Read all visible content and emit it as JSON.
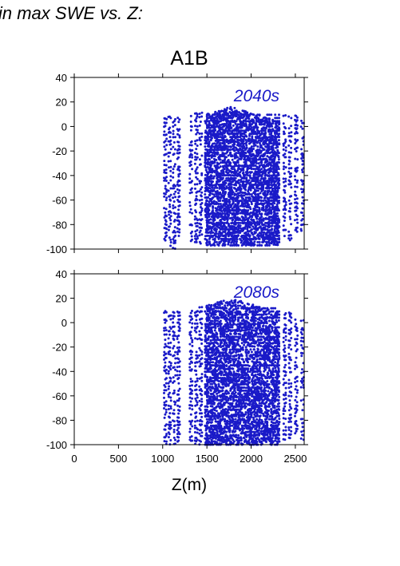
{
  "figure": {
    "title": "in max SWE vs. Z:"
  },
  "chart_data": [
    {
      "type": "scatter",
      "title": "A1B",
      "annotation": "2040s",
      "xlabel": "",
      "ylabel": "",
      "xlim": [
        0,
        2600
      ],
      "ylim": [
        -100,
        40
      ],
      "yticks": [
        "40",
        "20",
        "0",
        "-20",
        "-40",
        "-60",
        "-80",
        "-100"
      ],
      "xticks": [
        "0",
        "500",
        "1000",
        "1500",
        "2000",
        "2500"
      ],
      "xtick_labels_visible": false,
      "grid": false,
      "point_color": "#1a1ac8",
      "columns": [
        {
          "x": 1030,
          "ymin": -96,
          "ymax": 9
        },
        {
          "x": 1080,
          "ymin": -98,
          "ymax": 9
        },
        {
          "x": 1130,
          "ymin": -99,
          "ymax": 9
        },
        {
          "x": 1180,
          "ymin": -96,
          "ymax": 9
        },
        {
          "x": 1320,
          "ymin": -93,
          "ymax": 11
        },
        {
          "x": 1380,
          "ymin": -95,
          "ymax": 12
        },
        {
          "x": 1430,
          "ymin": -95,
          "ymax": 13
        }
      ],
      "dense_band": {
        "xmin": 1480,
        "xmax": 2320,
        "ymin": -97,
        "ymax": 16
      },
      "right_columns": [
        {
          "x": 2380,
          "ymin": -90,
          "ymax": 10
        },
        {
          "x": 2440,
          "ymin": -92,
          "ymax": 9
        },
        {
          "x": 2510,
          "ymin": -85,
          "ymax": 8
        },
        {
          "x": 2580,
          "ymin": -86,
          "ymax": 6
        }
      ]
    },
    {
      "type": "scatter",
      "title": "",
      "annotation": "2080s",
      "xlabel": "Z(m)",
      "ylabel": "",
      "xlim": [
        0,
        2600
      ],
      "ylim": [
        -100,
        40
      ],
      "yticks": [
        "40",
        "20",
        "0",
        "-20",
        "-40",
        "-60",
        "-80",
        "-100"
      ],
      "xticks": [
        "0",
        "500",
        "1000",
        "1500",
        "2000",
        "2500"
      ],
      "xtick_labels_visible": true,
      "grid": false,
      "point_color": "#1a1ac8",
      "columns": [
        {
          "x": 1030,
          "ymin": -100,
          "ymax": 12
        },
        {
          "x": 1080,
          "ymin": -100,
          "ymax": 12
        },
        {
          "x": 1130,
          "ymin": -100,
          "ymax": 12
        },
        {
          "x": 1180,
          "ymin": -100,
          "ymax": 11
        },
        {
          "x": 1320,
          "ymin": -100,
          "ymax": 10
        },
        {
          "x": 1380,
          "ymin": -100,
          "ymax": 12
        },
        {
          "x": 1430,
          "ymin": -100,
          "ymax": 13
        }
      ],
      "dense_band": {
        "xmin": 1480,
        "xmax": 2320,
        "ymin": -100,
        "ymax": 20
      },
      "right_columns": [
        {
          "x": 2380,
          "ymin": -95,
          "ymax": 10
        },
        {
          "x": 2440,
          "ymin": -95,
          "ymax": 8
        },
        {
          "x": 2510,
          "ymin": -90,
          "ymax": 6
        },
        {
          "x": 2580,
          "ymin": -95,
          "ymax": 4
        }
      ]
    }
  ]
}
